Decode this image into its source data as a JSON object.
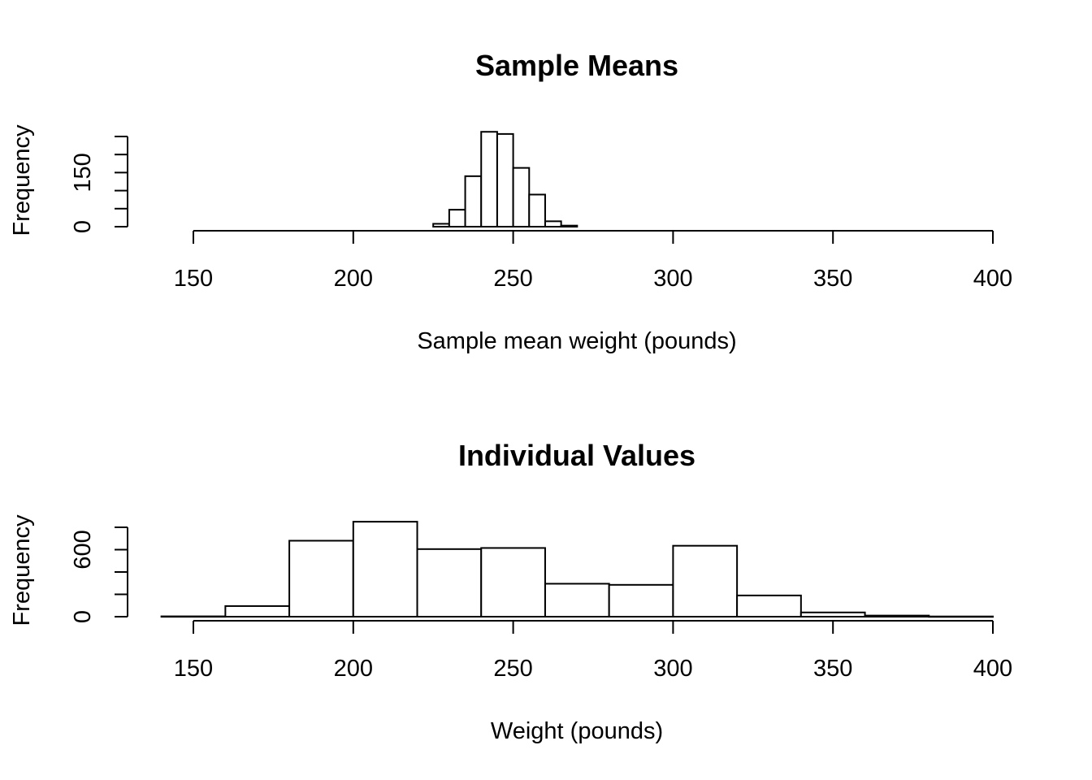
{
  "chart_data": [
    {
      "type": "bar",
      "title": "Sample Means",
      "xlabel": "Sample mean weight (pounds)",
      "ylabel": "Frequency",
      "xlim": [
        150,
        400
      ],
      "xticks": [
        150,
        200,
        250,
        300,
        350,
        400
      ],
      "ylim": [
        0,
        250
      ],
      "yticks": [
        0,
        50,
        100,
        150,
        200,
        250
      ],
      "ytick_labels": [
        "0",
        "",
        "",
        "150",
        "",
        ""
      ],
      "grid": false,
      "bins": [
        {
          "x0": 225,
          "x1": 230,
          "count": 8
        },
        {
          "x0": 230,
          "x1": 235,
          "count": 47
        },
        {
          "x0": 235,
          "x1": 240,
          "count": 140
        },
        {
          "x0": 240,
          "x1": 245,
          "count": 263
        },
        {
          "x0": 245,
          "x1": 250,
          "count": 257
        },
        {
          "x0": 250,
          "x1": 255,
          "count": 163
        },
        {
          "x0": 255,
          "x1": 260,
          "count": 89
        },
        {
          "x0": 260,
          "x1": 265,
          "count": 15
        },
        {
          "x0": 265,
          "x1": 270,
          "count": 3
        }
      ]
    },
    {
      "type": "bar",
      "title": "Individual Values",
      "xlabel": "Weight (pounds)",
      "ylabel": "Frequency",
      "xlim": [
        150,
        400
      ],
      "xticks": [
        150,
        200,
        250,
        300,
        350,
        400
      ],
      "ylim": [
        0,
        800
      ],
      "yticks": [
        0,
        200,
        400,
        600,
        800
      ],
      "ytick_labels": [
        "0",
        "",
        "",
        "600",
        ""
      ],
      "grid": false,
      "bins": [
        {
          "x0": 140,
          "x1": 160,
          "count": 3
        },
        {
          "x0": 160,
          "x1": 180,
          "count": 95
        },
        {
          "x0": 180,
          "x1": 200,
          "count": 680
        },
        {
          "x0": 200,
          "x1": 220,
          "count": 850
        },
        {
          "x0": 220,
          "x1": 240,
          "count": 605
        },
        {
          "x0": 240,
          "x1": 260,
          "count": 615
        },
        {
          "x0": 260,
          "x1": 280,
          "count": 295
        },
        {
          "x0": 280,
          "x1": 300,
          "count": 285
        },
        {
          "x0": 300,
          "x1": 320,
          "count": 635
        },
        {
          "x0": 320,
          "x1": 340,
          "count": 190
        },
        {
          "x0": 340,
          "x1": 360,
          "count": 38
        },
        {
          "x0": 360,
          "x1": 380,
          "count": 10
        },
        {
          "x0": 380,
          "x1": 400,
          "count": 2
        }
      ]
    }
  ]
}
